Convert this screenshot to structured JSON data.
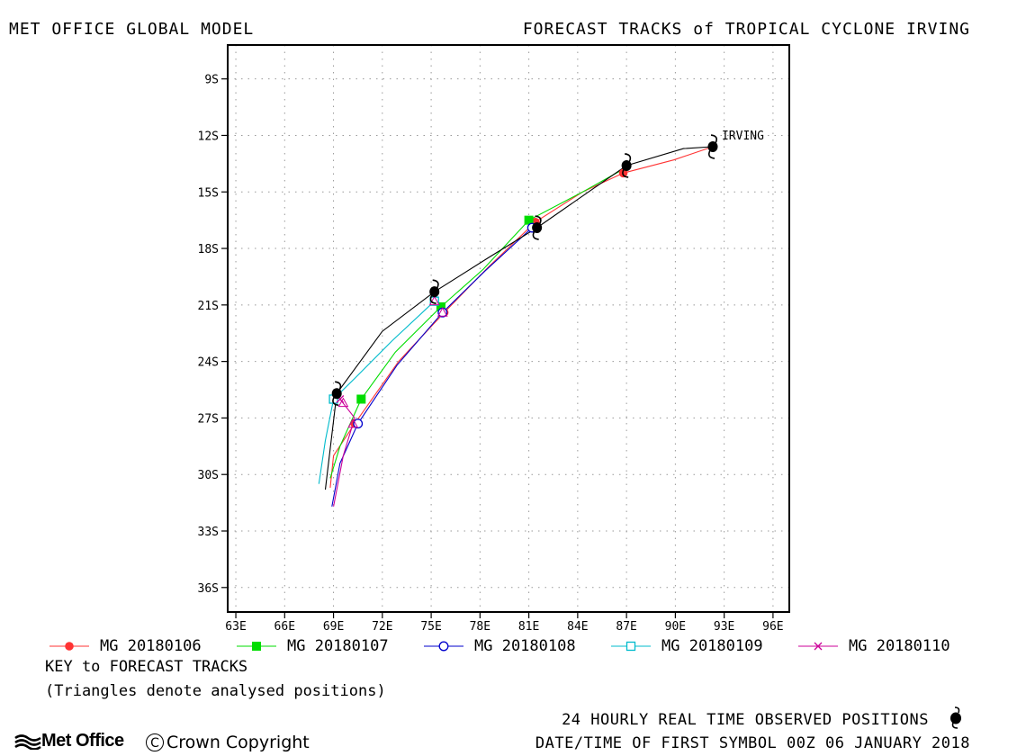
{
  "header": {
    "left_title": "MET OFFICE GLOBAL MODEL",
    "right_title": "FORECAST TRACKS of TROPICAL CYCLONE IRVING"
  },
  "chart_data": {
    "type": "line",
    "title": "FORECAST TRACKS of TROPICAL CYCLONE IRVING",
    "x_axis": {
      "label": "",
      "range_deg_east": [
        62.5,
        97.0
      ],
      "ticks": [
        63,
        66,
        69,
        72,
        75,
        78,
        81,
        84,
        87,
        90,
        93,
        96
      ],
      "tick_labels": [
        "63E",
        "66E",
        "69E",
        "72E",
        "75E",
        "78E",
        "81E",
        "84E",
        "87E",
        "90E",
        "93E",
        "96E"
      ]
    },
    "y_axis": {
      "label": "",
      "range_deg_south": [
        7.2,
        37.3
      ],
      "ticks": [
        9,
        12,
        15,
        18,
        21,
        24,
        27,
        30,
        33,
        36
      ],
      "tick_labels": [
        "9S",
        "12S",
        "15S",
        "18S",
        "21S",
        "24S",
        "27S",
        "30S",
        "33S",
        "36S"
      ]
    },
    "grid": true,
    "storm_label": "IRVING",
    "observed_track": {
      "color": "#000000",
      "points": [
        [
          92.3,
          12.6
        ],
        [
          90.5,
          12.7
        ],
        [
          87.0,
          13.6
        ],
        [
          84.5,
          15.1
        ],
        [
          81.5,
          16.9
        ],
        [
          78.5,
          18.5
        ],
        [
          75.2,
          20.3
        ],
        [
          72.0,
          22.4
        ],
        [
          69.2,
          25.7
        ],
        [
          68.5,
          30.8
        ]
      ],
      "symbol_positions": [
        [
          92.3,
          12.6
        ],
        [
          87.0,
          13.6
        ],
        [
          81.5,
          16.9
        ],
        [
          75.2,
          20.3
        ],
        [
          69.2,
          25.7
        ]
      ]
    },
    "series": [
      {
        "name": "MG 20180106",
        "color": "#ff3333",
        "marker": "filled-circle",
        "points": [
          [
            92.3,
            12.6
          ],
          [
            89.9,
            13.3
          ],
          [
            86.8,
            14.0
          ],
          [
            84.3,
            15.0
          ],
          [
            81.4,
            16.6
          ],
          [
            78.5,
            19.0
          ],
          [
            75.8,
            21.4
          ],
          [
            73.0,
            24.0
          ],
          [
            70.3,
            27.3
          ],
          [
            69.0,
            29.0
          ],
          [
            68.8,
            30.7
          ]
        ],
        "marker_positions": [
          [
            92.3,
            12.6
          ],
          [
            86.8,
            14.0
          ],
          [
            81.4,
            16.6
          ],
          [
            75.8,
            21.4
          ],
          [
            70.3,
            27.3
          ]
        ]
      },
      {
        "name": "MG 20180107",
        "color": "#00dd00",
        "marker": "filled-square",
        "points": [
          [
            87.0,
            13.7
          ],
          [
            84.3,
            15.0
          ],
          [
            81.0,
            16.5
          ],
          [
            78.2,
            19.1
          ],
          [
            75.6,
            21.1
          ],
          [
            72.8,
            23.5
          ],
          [
            70.7,
            26.0
          ],
          [
            69.4,
            28.5
          ],
          [
            68.8,
            30.2
          ]
        ],
        "marker_positions": [
          [
            81.0,
            16.5
          ],
          [
            75.6,
            21.1
          ],
          [
            70.7,
            26.0
          ]
        ]
      },
      {
        "name": "MG 20180108",
        "color": "#0000cc",
        "marker": "open-circle",
        "points": [
          [
            81.2,
            16.9
          ],
          [
            78.3,
            19.2
          ],
          [
            75.7,
            21.4
          ],
          [
            72.9,
            24.2
          ],
          [
            70.5,
            27.3
          ],
          [
            69.4,
            29.4
          ],
          [
            68.9,
            31.7
          ]
        ],
        "marker_positions": [
          [
            81.2,
            16.9
          ],
          [
            75.7,
            21.4
          ],
          [
            70.5,
            27.3
          ]
        ]
      },
      {
        "name": "MG 20180109",
        "color": "#00bbcc",
        "marker": "open-square",
        "points": [
          [
            75.2,
            20.8
          ],
          [
            72.6,
            22.9
          ],
          [
            70.3,
            24.9
          ],
          [
            69.0,
            26.0
          ],
          [
            68.5,
            28.2
          ],
          [
            68.1,
            30.5
          ]
        ],
        "marker_positions": [
          [
            75.2,
            20.8
          ],
          [
            69.0,
            26.0
          ]
        ]
      },
      {
        "name": "MG 20180110",
        "color": "#cc0099",
        "marker": "x",
        "points": [
          [
            69.4,
            26.0
          ],
          [
            70.3,
            27.0
          ],
          [
            69.6,
            29.0
          ],
          [
            69.0,
            31.7
          ]
        ],
        "marker_positions": [
          [
            69.4,
            26.0
          ]
        ]
      }
    ],
    "analysed_triangles": [
      [
        75.7,
        21.4
      ],
      [
        75.2,
        20.8
      ],
      [
        70.2,
        27.3
      ],
      [
        69.6,
        26.2
      ]
    ]
  },
  "legend": {
    "items": [
      {
        "label": "MG 20180106",
        "color": "#ff3333",
        "marker": "filled-circle"
      },
      {
        "label": "MG 20180107",
        "color": "#00dd00",
        "marker": "filled-square"
      },
      {
        "label": "MG 20180108",
        "color": "#0000cc",
        "marker": "open-circle"
      },
      {
        "label": "MG 20180109",
        "color": "#00bbcc",
        "marker": "open-square"
      },
      {
        "label": "MG 20180110",
        "color": "#cc0099",
        "marker": "x"
      }
    ],
    "key_title": "KEY to FORECAST TRACKS",
    "key_note": "(Triangles denote analysed positions)"
  },
  "footer": {
    "observed_text": "24 HOURLY REAL TIME OBSERVED POSITIONS",
    "observed_icon": "cyclone-icon",
    "datetime_text": "DATE/TIME OF FIRST SYMBOL 00Z 06 JANUARY 2018",
    "logo_text": "Met Office",
    "logo_icon": "met-office-waves-icon",
    "copyright_symbol": "C",
    "copyright_text": "Crown Copyright"
  }
}
